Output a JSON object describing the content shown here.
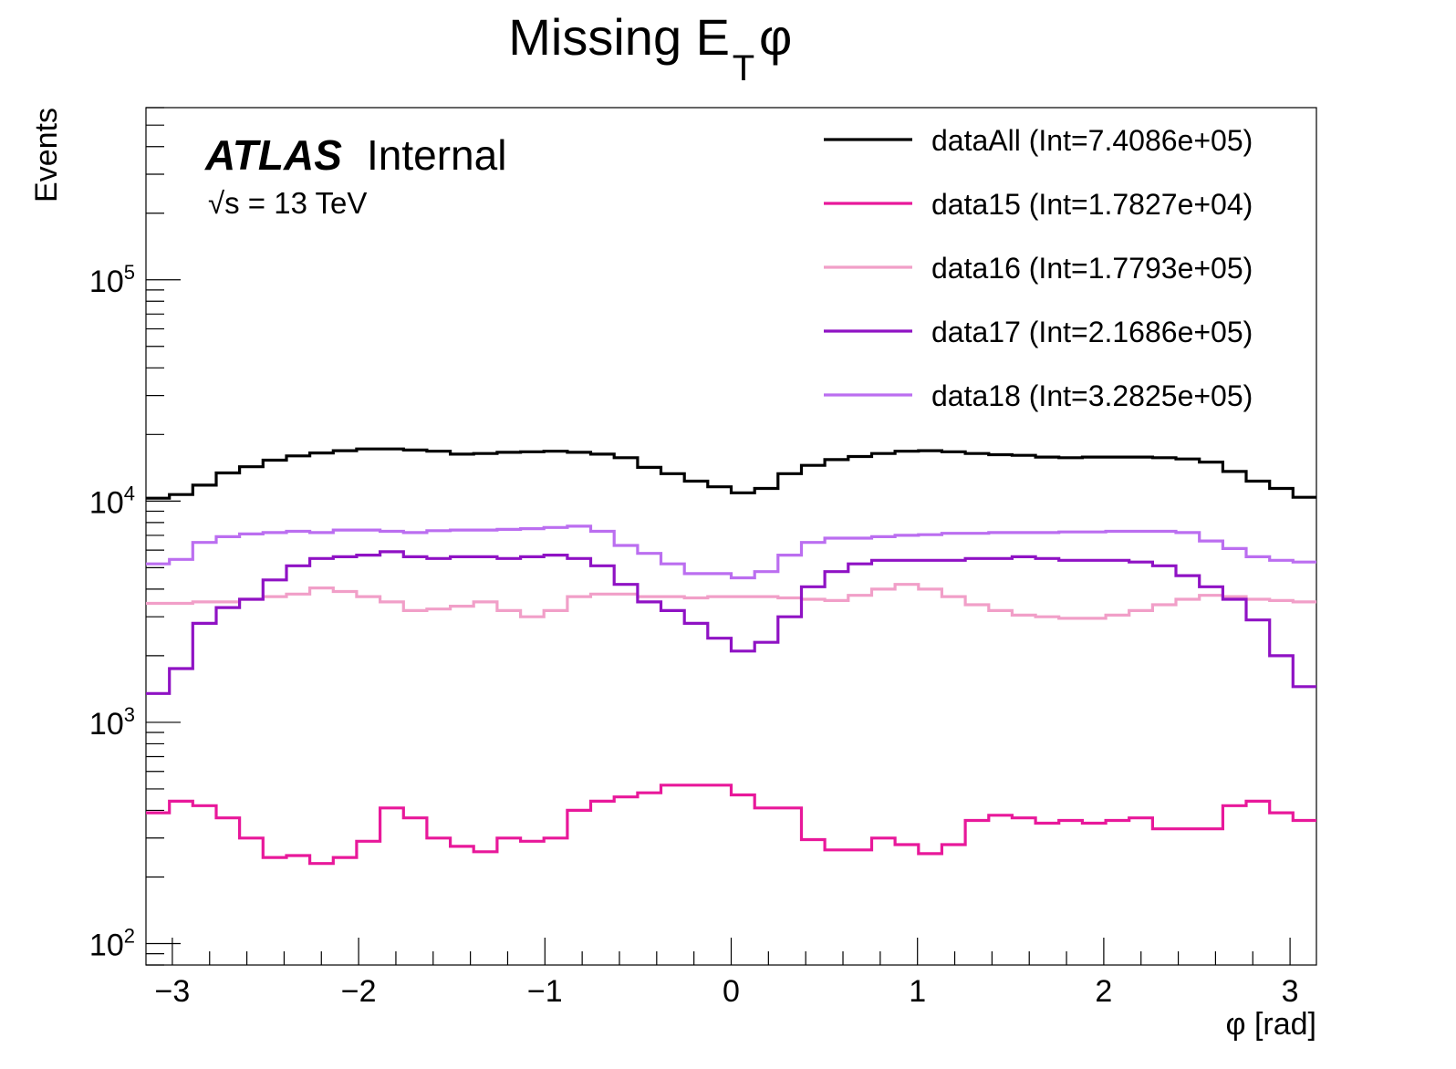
{
  "chart_data": {
    "type": "line",
    "title": {
      "main": "Missing E",
      "sub": "T",
      "suffix": " φ"
    },
    "xlabel": "φ [rad]",
    "ylabel": "Events",
    "xlim": [
      -3.1416,
      3.1416
    ],
    "ylim": [
      80,
      600000
    ],
    "yscale": "log",
    "grid": false,
    "legend_position": "top-right",
    "x_ticks": [
      {
        "value": -3,
        "label": "−3"
      },
      {
        "value": -2,
        "label": "−2"
      },
      {
        "value": -1,
        "label": "−1"
      },
      {
        "value": 0,
        "label": "0"
      },
      {
        "value": 1,
        "label": "1"
      },
      {
        "value": 2,
        "label": "2"
      },
      {
        "value": 3,
        "label": "3"
      }
    ],
    "y_ticks": [
      {
        "value": 100,
        "base": "10",
        "exp": "2"
      },
      {
        "value": 1000,
        "base": "10",
        "exp": "3"
      },
      {
        "value": 10000,
        "base": "10",
        "exp": "4"
      },
      {
        "value": 100000,
        "base": "10",
        "exp": "5"
      }
    ],
    "annotations": {
      "atlas": "ATLAS",
      "internal": "Internal",
      "sqrt": "√s = 13 TeV"
    },
    "bins": 50,
    "series": [
      {
        "name": "dataAll (Int=7.4086e+05)",
        "color": "#000000",
        "values": [
          10300,
          10700,
          11800,
          13400,
          14300,
          15300,
          16000,
          16500,
          16900,
          17200,
          17200,
          17000,
          16800,
          16300,
          16400,
          16600,
          16700,
          16800,
          16600,
          16300,
          15700,
          14200,
          13300,
          12300,
          11600,
          10900,
          11400,
          13300,
          14500,
          15400,
          15900,
          16400,
          16800,
          16900,
          16700,
          16400,
          16200,
          16100,
          15800,
          15700,
          15800,
          15800,
          15800,
          15700,
          15500,
          15000,
          13600,
          12300,
          11400,
          10400
        ]
      },
      {
        "name": "data15 (Int=1.7827e+04)",
        "color": "#e8189a",
        "values": [
          390,
          440,
          420,
          370,
          300,
          245,
          250,
          230,
          245,
          290,
          410,
          370,
          300,
          275,
          260,
          300,
          290,
          300,
          400,
          440,
          460,
          480,
          520,
          520,
          520,
          470,
          410,
          410,
          295,
          265,
          265,
          300,
          280,
          255,
          280,
          360,
          380,
          370,
          350,
          360,
          350,
          360,
          370,
          330,
          330,
          330,
          420,
          440,
          390,
          360
        ]
      },
      {
        "name": "data16 (Int=1.7793e+05)",
        "color": "#f19fc8",
        "values": [
          3450,
          3450,
          3500,
          3500,
          3600,
          3700,
          3800,
          4050,
          3900,
          3700,
          3500,
          3200,
          3250,
          3350,
          3500,
          3200,
          3000,
          3200,
          3700,
          3800,
          3800,
          3700,
          3700,
          3650,
          3700,
          3700,
          3700,
          3650,
          3600,
          3550,
          3750,
          4000,
          4200,
          4000,
          3700,
          3400,
          3200,
          3050,
          3000,
          2950,
          2950,
          3050,
          3200,
          3400,
          3600,
          3750,
          3700,
          3600,
          3550,
          3500
        ]
      },
      {
        "name": "data17 (Int=2.1686e+05)",
        "color": "#8f12c4",
        "values": [
          1350,
          1750,
          2800,
          3300,
          3600,
          4400,
          5100,
          5500,
          5600,
          5700,
          5900,
          5600,
          5500,
          5600,
          5600,
          5500,
          5600,
          5700,
          5500,
          5100,
          4200,
          3500,
          3200,
          2800,
          2400,
          2100,
          2300,
          3000,
          4100,
          4800,
          5200,
          5400,
          5400,
          5400,
          5400,
          5500,
          5500,
          5600,
          5500,
          5400,
          5400,
          5400,
          5300,
          5100,
          4600,
          4100,
          3600,
          2900,
          2000,
          1450
        ]
      },
      {
        "name": "data18 (Int=3.2825e+05)",
        "color": "#bb6ef0",
        "values": [
          5200,
          5450,
          6500,
          6900,
          7100,
          7200,
          7300,
          7200,
          7400,
          7400,
          7300,
          7200,
          7350,
          7400,
          7400,
          7450,
          7500,
          7600,
          7700,
          7300,
          6300,
          5800,
          5200,
          4700,
          4700,
          4500,
          4800,
          5700,
          6500,
          6800,
          6800,
          6900,
          7000,
          7050,
          7150,
          7150,
          7200,
          7200,
          7200,
          7250,
          7250,
          7300,
          7300,
          7300,
          7200,
          6600,
          6100,
          5600,
          5400,
          5300
        ]
      }
    ]
  }
}
